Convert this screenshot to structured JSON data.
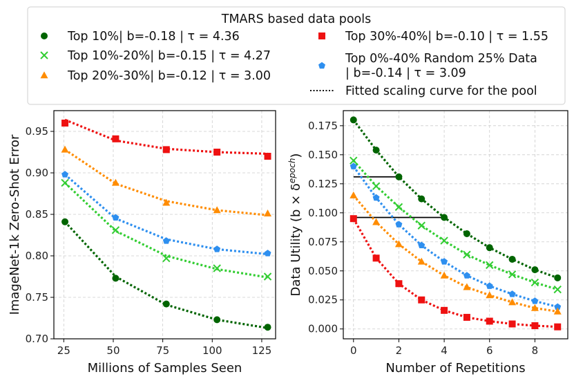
{
  "legend": {
    "title": "TMARS based data pools",
    "entries": [
      {
        "key": "top10",
        "label": "Top 10%| b=-0.18 | τ = 4.36"
      },
      {
        "key": "top30_40",
        "label": "Top 30%-40%| b=-0.10 | τ = 1.55"
      },
      {
        "key": "top10_20",
        "label": "Top 10%-20%| b=-0.15 | τ = 4.27"
      },
      {
        "key": "random",
        "label": "Top 0%-40% Random 25% Data",
        "label2": "| b=-0.14 | τ = 3.09"
      },
      {
        "key": "top20_30",
        "label": "Top 20%-30%| b=-0.12 | τ = 3.00"
      },
      {
        "key": "fit",
        "label": "Fitted scaling curve for the pool"
      }
    ]
  },
  "series_style": {
    "top10": {
      "color": "#006400",
      "marker": "circle"
    },
    "top10_20": {
      "color": "#32cd32",
      "marker": "x"
    },
    "top20_30": {
      "color": "#ff8c00",
      "marker": "triangle"
    },
    "top30_40": {
      "color": "#ee1111",
      "marker": "square"
    },
    "random": {
      "color": "#2e8fef",
      "marker": "pentagon"
    }
  },
  "chart_data": [
    {
      "type": "line",
      "title": "",
      "xlabel": "Millions of Samples Seen",
      "ylabel": "ImageNet-1k Zero-Shot Error",
      "xlim": [
        20,
        132
      ],
      "ylim": [
        0.7,
        0.975
      ],
      "xticks": [
        25,
        50,
        75,
        100,
        125
      ],
      "yticks": [
        0.7,
        0.75,
        0.8,
        0.85,
        0.9,
        0.95
      ],
      "ytick_labels": [
        "0.70",
        "0.75",
        "0.80",
        "0.85",
        "0.90",
        "0.95"
      ],
      "x": [
        25.6,
        51.2,
        76.8,
        102.4,
        128
      ],
      "grid": true,
      "series": [
        {
          "key": "top10",
          "values": [
            0.841,
            0.773,
            0.742,
            0.723,
            0.714
          ],
          "fit": [
            0.841,
            0.775,
            0.741,
            0.723,
            0.713
          ]
        },
        {
          "key": "top10_20",
          "values": [
            0.888,
            0.831,
            0.797,
            0.785,
            0.775
          ],
          "fit": [
            0.888,
            0.83,
            0.8,
            0.784,
            0.774
          ]
        },
        {
          "key": "top20_30",
          "values": [
            0.928,
            0.888,
            0.864,
            0.855,
            0.851
          ],
          "fit": [
            0.928,
            0.887,
            0.866,
            0.855,
            0.849
          ]
        },
        {
          "key": "top30_40",
          "values": [
            0.96,
            0.941,
            0.928,
            0.925,
            0.92
          ],
          "fit": [
            0.964,
            0.939,
            0.929,
            0.925,
            0.923
          ]
        },
        {
          "key": "random",
          "values": [
            0.898,
            0.846,
            0.818,
            0.808,
            0.803
          ],
          "fit": [
            0.898,
            0.845,
            0.82,
            0.808,
            0.802
          ]
        }
      ]
    },
    {
      "type": "line",
      "title": "",
      "xlabel": "Number of Repetitions",
      "ylabel": "Data Utility (b × δ",
      "ylabel_sup": "epoch",
      "ylabel_end": ")",
      "xlim": [
        -0.45,
        9.45
      ],
      "ylim": [
        -0.0085,
        0.188
      ],
      "xticks": [
        0,
        2,
        4,
        6,
        8
      ],
      "yticks": [
        0.0,
        0.025,
        0.05,
        0.075,
        0.1,
        0.125,
        0.15,
        0.175
      ],
      "ytick_labels": [
        "0.000",
        "0.025",
        "0.050",
        "0.075",
        "0.100",
        "0.125",
        "0.150",
        "0.175"
      ],
      "x": [
        0,
        1,
        2,
        3,
        4,
        5,
        6,
        7,
        8,
        9
      ],
      "grid": true,
      "series": [
        {
          "key": "top10",
          "values": [
            0.18,
            0.154,
            0.131,
            0.112,
            0.096,
            0.082,
            0.07,
            0.06,
            0.051,
            0.044
          ]
        },
        {
          "key": "top10_20",
          "values": [
            0.145,
            0.123,
            0.105,
            0.089,
            0.076,
            0.064,
            0.055,
            0.047,
            0.04,
            0.034
          ]
        },
        {
          "key": "random",
          "values": [
            0.14,
            0.113,
            0.09,
            0.072,
            0.058,
            0.046,
            0.037,
            0.03,
            0.024,
            0.019
          ]
        },
        {
          "key": "top20_30",
          "values": [
            0.115,
            0.092,
            0.073,
            0.058,
            0.046,
            0.036,
            0.029,
            0.023,
            0.018,
            0.015
          ]
        },
        {
          "key": "top30_40",
          "values": [
            0.095,
            0.061,
            0.039,
            0.025,
            0.016,
            0.01,
            0.0067,
            0.0043,
            0.0028,
            0.0018
          ]
        }
      ],
      "reference_lines": [
        {
          "y": 0.131,
          "x_start": 0,
          "x_end": 2
        },
        {
          "y": 0.096,
          "x_start": 0,
          "x_end": 4
        }
      ]
    }
  ]
}
